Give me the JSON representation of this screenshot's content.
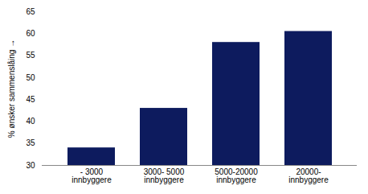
{
  "chart_data": {
    "type": "bar",
    "categories": [
      "- 3000\ninnbyggere",
      "3000- 5000\ninnbyggere",
      "5000-20000\ninnbyggere",
      "20000-\ninnbyggere"
    ],
    "values": [
      34,
      43,
      58,
      60.5
    ],
    "color": "#0d1b5e",
    "ylabel": "% ønsker sammenslåing",
    "ylim": [
      30,
      65
    ],
    "yticks": [
      30,
      35,
      40,
      45,
      50,
      55,
      60,
      65
    ],
    "grid": false
  }
}
